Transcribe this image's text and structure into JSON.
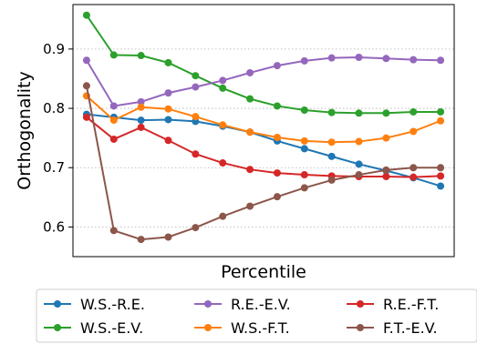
{
  "chart_data": {
    "type": "line",
    "title": "",
    "xlabel": "Percentile",
    "ylabel": "Orthogonality",
    "x": [
      1,
      2,
      3,
      4,
      5,
      6,
      7,
      8,
      9,
      10,
      11,
      12,
      13,
      14
    ],
    "ylim": [
      0.55,
      0.975
    ],
    "yticks": [
      0.6,
      0.7,
      0.8,
      0.9
    ],
    "ytick_labels": [
      "0.6",
      "0.7",
      "0.8",
      "0.9"
    ],
    "grid": "horizontal-dotted",
    "legend_position": "below",
    "series": [
      {
        "name": "W.S.-R.E.",
        "color": "#1f77b4",
        "values": [
          0.79,
          0.785,
          0.78,
          0.781,
          0.778,
          0.77,
          0.76,
          0.745,
          0.732,
          0.719,
          0.706,
          0.695,
          0.683,
          0.669
        ]
      },
      {
        "name": "W.S.-E.V.",
        "color": "#2ca02c",
        "values": [
          0.957,
          0.89,
          0.889,
          0.877,
          0.855,
          0.834,
          0.816,
          0.804,
          0.797,
          0.793,
          0.792,
          0.792,
          0.794,
          0.794
        ]
      },
      {
        "name": "R.E.-E.V.",
        "color": "#9467bd",
        "values": [
          0.881,
          0.804,
          0.811,
          0.826,
          0.836,
          0.847,
          0.86,
          0.872,
          0.88,
          0.885,
          0.886,
          0.884,
          0.882,
          0.881
        ]
      },
      {
        "name": "W.S.-F.T.",
        "color": "#ff7f0e",
        "values": [
          0.821,
          0.78,
          0.802,
          0.799,
          0.786,
          0.772,
          0.76,
          0.751,
          0.745,
          0.743,
          0.744,
          0.75,
          0.761,
          0.779
        ]
      },
      {
        "name": "R.E.-F.T.",
        "color": "#d62728",
        "values": [
          0.785,
          0.748,
          0.768,
          0.746,
          0.723,
          0.708,
          0.697,
          0.691,
          0.688,
          0.686,
          0.685,
          0.685,
          0.684,
          0.686
        ]
      },
      {
        "name": "F.T.-E.V.",
        "color": "#8c564b",
        "values": [
          0.838,
          0.594,
          0.579,
          0.583,
          0.599,
          0.618,
          0.635,
          0.651,
          0.666,
          0.679,
          0.688,
          0.696,
          0.7,
          0.7
        ]
      }
    ]
  }
}
